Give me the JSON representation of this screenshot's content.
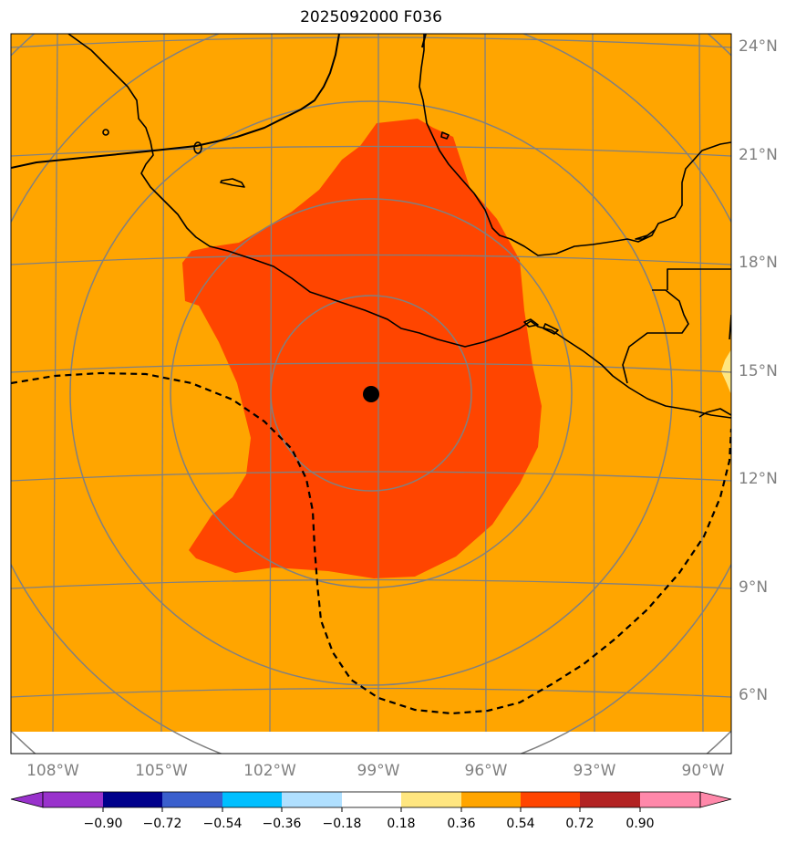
{
  "title": "2025092000 F036",
  "map": {
    "lat_labels": [
      "24°N",
      "21°N",
      "18°N",
      "15°N",
      "12°N",
      "9°N",
      "6°N"
    ],
    "lon_labels": [
      "108°W",
      "105°W",
      "102°W",
      "99°W",
      "96°W",
      "93°W",
      "90°W"
    ],
    "background_fill": "#ffa500",
    "core_fill": "#ff4500",
    "gridline_color": "#808080",
    "coastline_color": "#000000",
    "center_marker": "storm-center-dot"
  },
  "colorbar": {
    "labels": [
      "−0.90",
      "−0.72",
      "−0.54",
      "−0.36",
      "−0.18",
      "0.18",
      "0.36",
      "0.54",
      "0.72",
      "0.90"
    ],
    "colors": [
      "#9932cc",
      "#00008b",
      "#3a5fcd",
      "#00bfff",
      "#b0e0ff",
      "#ffffff",
      "#ffe680",
      "#ffa500",
      "#ff4500",
      "#b22222",
      "#ff88aa"
    ]
  }
}
